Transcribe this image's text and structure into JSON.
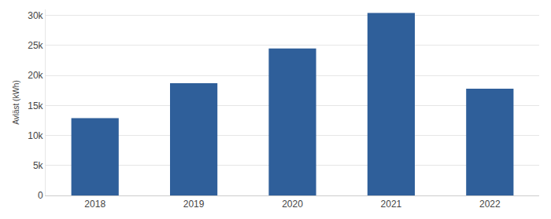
{
  "chart_data": {
    "type": "bar",
    "y_label": "Avläst (kWh)",
    "categories": [
      "2018",
      "2019",
      "2020",
      "2021",
      "2022"
    ],
    "values": [
      12900,
      18700,
      24500,
      30400,
      17800
    ],
    "color": "#2f5f9a",
    "ylim": [
      0,
      31000
    ],
    "yticks": [
      0,
      {
        "value": 5000,
        "label": "5k"
      },
      {
        "value": 10000,
        "label": "10k"
      },
      {
        "value": 15000,
        "label": "15k"
      },
      {
        "value": 20000,
        "label": "20k"
      },
      {
        "value": 25000,
        "label": "25k"
      },
      {
        "value": 30000,
        "label": "30k"
      }
    ],
    "grid": true
  }
}
